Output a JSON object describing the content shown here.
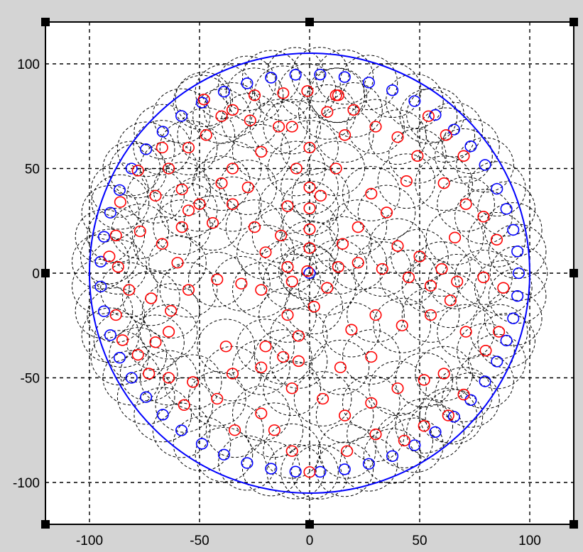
{
  "chart_data": {
    "type": "scatter",
    "title": "",
    "xlabel": "",
    "ylabel": "",
    "xlim": [
      -120,
      120
    ],
    "ylim": [
      -120,
      120
    ],
    "grid": true,
    "grid_style": "dashed",
    "x_ticks": [
      -100,
      -50,
      0,
      50,
      100
    ],
    "y_ticks": [
      -100,
      -50,
      0,
      50,
      100
    ],
    "x_tick_labels": [
      "-100",
      "-50",
      "0",
      "50",
      "100"
    ],
    "y_tick_labels": [
      "-100",
      "-50",
      "0",
      "50",
      "100"
    ],
    "boundary_circle": {
      "cx": 0,
      "cy": 0,
      "r": 100,
      "color": "#0000ff"
    },
    "marker_radius_units": 2.5,
    "coverage_radius_units": 13,
    "series": [
      {
        "color": "#0000ff",
        "marker": "circle-open",
        "points": [
          [
            0,
            0
          ],
          [
            95.0,
            0.0
          ],
          [
            94.4,
            10.4
          ],
          [
            92.5,
            20.7
          ],
          [
            89.4,
            30.7
          ],
          [
            85.1,
            40.3
          ],
          [
            79.7,
            51.7
          ],
          [
            73.2,
            60.6
          ],
          [
            65.6,
            68.6
          ],
          [
            57.1,
            75.6
          ],
          [
            47.7,
            82.2
          ],
          [
            37.6,
            87.4
          ],
          [
            26.9,
            91.1
          ],
          [
            15.9,
            93.7
          ],
          [
            4.8,
            94.9
          ],
          [
            -6.4,
            94.8
          ],
          [
            -17.5,
            93.4
          ],
          [
            -28.4,
            90.7
          ],
          [
            -38.9,
            86.7
          ],
          [
            -48.9,
            81.5
          ],
          [
            -58.2,
            75.1
          ],
          [
            -66.7,
            67.6
          ],
          [
            -74.3,
            59.2
          ],
          [
            -80.9,
            50.0
          ],
          [
            -86.3,
            39.7
          ],
          [
            -90.5,
            28.9
          ],
          [
            -93.4,
            17.4
          ],
          [
            -94.9,
            5.5
          ],
          [
            -94.9,
            -6.4
          ],
          [
            -93.4,
            -18.2
          ],
          [
            -90.5,
            -29.6
          ],
          [
            -86.3,
            -40.4
          ],
          [
            -80.9,
            -50.0
          ],
          [
            -74.3,
            -59.2
          ],
          [
            -66.7,
            -67.6
          ],
          [
            -58.2,
            -75.1
          ],
          [
            -48.9,
            -81.5
          ],
          [
            -38.9,
            -86.7
          ],
          [
            -28.4,
            -90.7
          ],
          [
            -17.5,
            -93.4
          ],
          [
            -6.4,
            -94.8
          ],
          [
            4.8,
            -94.9
          ],
          [
            15.9,
            -93.7
          ],
          [
            26.9,
            -91.1
          ],
          [
            37.6,
            -87.4
          ],
          [
            47.7,
            -82.2
          ],
          [
            57.1,
            -75.9
          ],
          [
            65.6,
            -68.6
          ],
          [
            73.2,
            -60.6
          ],
          [
            79.7,
            -51.7
          ],
          [
            85.1,
            -42.2
          ],
          [
            89.4,
            -32.2
          ],
          [
            92.5,
            -21.6
          ],
          [
            94.4,
            -10.9
          ]
        ]
      },
      {
        "color": "#ff0000",
        "marker": "circle-open",
        "points": [
          [
            0,
            12
          ],
          [
            0,
            21
          ],
          [
            0,
            31
          ],
          [
            0,
            41
          ],
          [
            -6,
            50
          ],
          [
            0,
            60
          ],
          [
            -8,
            70
          ],
          [
            8,
            77
          ],
          [
            -1,
            87
          ],
          [
            13,
            85
          ],
          [
            -12,
            86
          ],
          [
            -25,
            85
          ],
          [
            -35,
            78
          ],
          [
            -27,
            73
          ],
          [
            -14,
            70
          ],
          [
            -22,
            58
          ],
          [
            -35,
            50
          ],
          [
            -28,
            41
          ],
          [
            -40,
            43
          ],
          [
            -50,
            33
          ],
          [
            -44,
            24
          ],
          [
            -58,
            40
          ],
          [
            -55,
            30
          ],
          [
            -25,
            22
          ],
          [
            -13,
            18
          ],
          [
            -20,
            10
          ],
          [
            -10,
            3
          ],
          [
            -1,
            1
          ],
          [
            -8,
            -4
          ],
          [
            -22,
            -8
          ],
          [
            -31,
            -5
          ],
          [
            -42,
            -3
          ],
          [
            -55,
            -8
          ],
          [
            -63,
            -18
          ],
          [
            -72,
            -12
          ],
          [
            -82,
            -8
          ],
          [
            -87,
            3
          ],
          [
            -77,
            20
          ],
          [
            -67,
            14
          ],
          [
            -58,
            22
          ],
          [
            -70,
            37
          ],
          [
            -64,
            50
          ],
          [
            -55,
            60
          ],
          [
            -47,
            66
          ],
          [
            -40,
            75
          ],
          [
            -48,
            83
          ],
          [
            -67,
            60
          ],
          [
            -78,
            49
          ],
          [
            -86,
            34
          ],
          [
            -88,
            18
          ],
          [
            -91,
            8
          ],
          [
            -60,
            5
          ],
          [
            -64,
            -28
          ],
          [
            -70,
            -33
          ],
          [
            -78,
            -39
          ],
          [
            -85,
            -32
          ],
          [
            -88,
            -20
          ],
          [
            -73,
            -48
          ],
          [
            -64,
            -50
          ],
          [
            -53,
            -52
          ],
          [
            -42,
            -60
          ],
          [
            -57,
            -63
          ],
          [
            -35,
            -48
          ],
          [
            -22,
            -45
          ],
          [
            -12,
            -40
          ],
          [
            -5,
            -30
          ],
          [
            -10,
            -20
          ],
          [
            2,
            -16
          ],
          [
            8,
            -7
          ],
          [
            13,
            3
          ],
          [
            22,
            5
          ],
          [
            33,
            2
          ],
          [
            45,
            -2
          ],
          [
            55,
            -6
          ],
          [
            67,
            -4
          ],
          [
            79,
            -2
          ],
          [
            88,
            -7
          ],
          [
            15,
            14
          ],
          [
            22,
            22
          ],
          [
            35,
            29
          ],
          [
            28,
            38
          ],
          [
            44,
            44
          ],
          [
            49,
            56
          ],
          [
            40,
            65
          ],
          [
            30,
            70
          ],
          [
            20,
            78
          ],
          [
            12,
            85
          ],
          [
            54,
            75
          ],
          [
            62,
            66
          ],
          [
            70,
            56
          ],
          [
            61,
            43
          ],
          [
            71,
            33
          ],
          [
            79,
            27
          ],
          [
            85,
            16
          ],
          [
            66,
            17
          ],
          [
            60,
            2
          ],
          [
            50,
            8
          ],
          [
            40,
            13
          ],
          [
            5,
            37
          ],
          [
            12,
            50
          ],
          [
            16,
            66
          ],
          [
            -35,
            33
          ],
          [
            -10,
            32
          ],
          [
            19,
            -27
          ],
          [
            30,
            -20
          ],
          [
            42,
            -25
          ],
          [
            55,
            -20
          ],
          [
            64,
            -13
          ],
          [
            71,
            -28
          ],
          [
            80,
            -37
          ],
          [
            86,
            -28
          ],
          [
            61,
            -48
          ],
          [
            52,
            -51
          ],
          [
            40,
            -55
          ],
          [
            28,
            -62
          ],
          [
            16,
            -68
          ],
          [
            6,
            -60
          ],
          [
            -8,
            -55
          ],
          [
            -22,
            -67
          ],
          [
            -34,
            -75
          ],
          [
            -16,
            -75
          ],
          [
            -8,
            -85
          ],
          [
            0,
            -95
          ],
          [
            17,
            -85
          ],
          [
            30,
            -77
          ],
          [
            43,
            -80
          ],
          [
            52,
            -73
          ],
          [
            63,
            -68
          ],
          [
            70,
            -58
          ],
          [
            28,
            -40
          ],
          [
            14,
            -45
          ],
          [
            -5,
            -42
          ],
          [
            -20,
            -35
          ],
          [
            -38,
            -35
          ]
        ]
      }
    ]
  }
}
